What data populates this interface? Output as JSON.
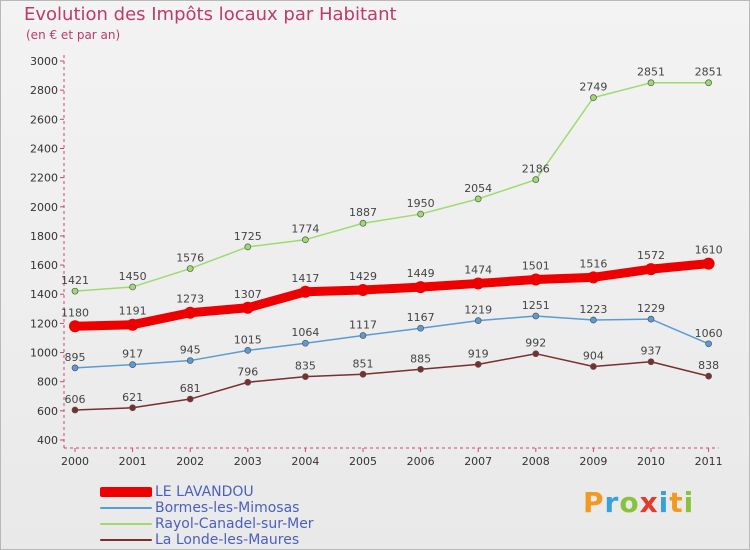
{
  "header": {
    "title": "Evolution des Impôts locaux par Habitant",
    "subtitle": "(en € et par an)"
  },
  "logo": {
    "text": "Proxiti",
    "letters": [
      {
        "ch": "P",
        "color": "#f29a1f"
      },
      {
        "ch": "r",
        "color": "#3aa0d8"
      },
      {
        "ch": "o",
        "color": "#88c33d"
      },
      {
        "ch": "x",
        "color": "#e23b2b"
      },
      {
        "ch": "i",
        "color": "#3aa0d8"
      },
      {
        "ch": "t",
        "color": "#f29a1f"
      },
      {
        "ch": "i",
        "color": "#88c33d"
      }
    ]
  },
  "chart_data": {
    "type": "line",
    "title": "Evolution des Impôts locaux par Habitant",
    "subtitle": "(en € et par an)",
    "x": [
      "2000",
      "2001",
      "2002",
      "2003",
      "2004",
      "2005",
      "2006",
      "2007",
      "2008",
      "2009",
      "2010",
      "2011"
    ],
    "ylim": [
      400,
      3000
    ],
    "yticks": [
      400,
      600,
      800,
      1000,
      1200,
      1400,
      1600,
      1800,
      2000,
      2200,
      2400,
      2600,
      2800,
      3000
    ],
    "grid": false,
    "legend_position": "bottom-left",
    "series": [
      {
        "name": "LE LAVANDOU",
        "color": "#ee0000",
        "values": [
          1180,
          1191,
          1273,
          1307,
          1417,
          1429,
          1449,
          1474,
          1501,
          1516,
          1572,
          1610
        ],
        "labels": [
          "1180",
          "1191",
          "1273",
          "1307",
          "1417",
          "1429",
          "1449",
          "1474",
          "1501",
          "1516",
          "1572",
          "1610"
        ]
      },
      {
        "name": "Bormes-les-Mimosas",
        "color": "#5b9bd5",
        "values": [
          895,
          917,
          945,
          1015,
          1064,
          1117,
          1167,
          1219,
          1251,
          1223,
          1229,
          1060
        ],
        "labels": [
          "895",
          "917",
          "945",
          "1015",
          "1064",
          "1117",
          "1167",
          "1219",
          "1251",
          "1223",
          "1229",
          "1060"
        ]
      },
      {
        "name": "Rayol-Canadel-sur-Mer",
        "color": "#9ddb6f",
        "values": [
          1421,
          1450,
          1576,
          1725,
          1774,
          1887,
          1950,
          2054,
          2186,
          2749,
          2851,
          2851
        ],
        "labels": [
          "1421",
          "1450",
          "1576",
          "1725",
          "1774",
          "1887",
          "1950",
          "2054",
          "2186",
          "2749",
          "2851",
          "2851"
        ]
      },
      {
        "name": "La Londe-les-Maures",
        "color": "#7a2e2e",
        "values": [
          606,
          621,
          681,
          796,
          835,
          851,
          885,
          919,
          992,
          904,
          937,
          838
        ],
        "labels": [
          "606",
          "621",
          "681",
          "796",
          "835",
          "851",
          "885",
          "919",
          "992",
          "904",
          "937",
          "838"
        ]
      }
    ]
  }
}
